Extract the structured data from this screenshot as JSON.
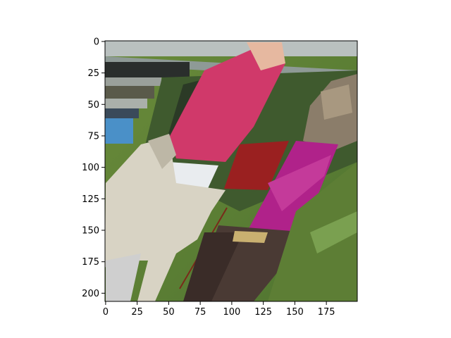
{
  "chart_data": {
    "type": "image",
    "title": "",
    "xlabel": "",
    "ylabel": "",
    "xlim": [
      -0.5,
      199.5
    ],
    "ylim": [
      206.5,
      -0.5
    ],
    "x_ticks": [
      0,
      25,
      50,
      75,
      100,
      125,
      150,
      175
    ],
    "x_tick_labels": [
      "0",
      "25",
      "50",
      "75",
      "100",
      "125",
      "150",
      "175"
    ],
    "y_ticks": [
      0,
      25,
      50,
      75,
      100,
      125,
      150,
      175,
      200
    ],
    "y_tick_labels": [
      "0",
      "25",
      "50",
      "75",
      "100",
      "125",
      "150",
      "175",
      "200"
    ],
    "grid": false,
    "legend": "none"
  },
  "colors": {
    "axis": "#000000",
    "background": "#ffffff"
  }
}
